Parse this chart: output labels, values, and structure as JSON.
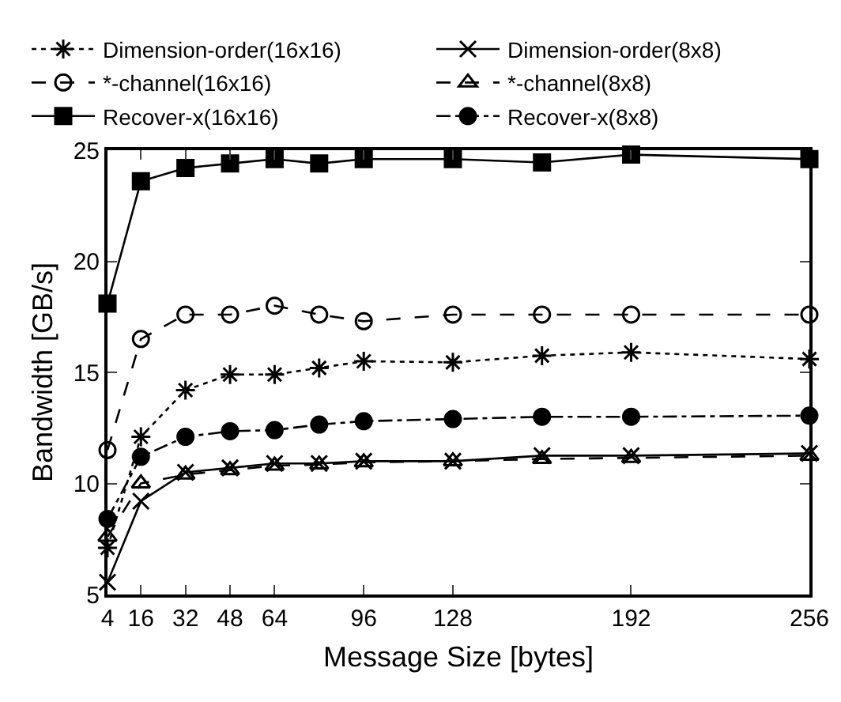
{
  "chart_data": {
    "type": "line",
    "xlabel": "Message Size [bytes]",
    "ylabel": "Bandwidth [GB/s]",
    "x": [
      4,
      16,
      32,
      48,
      64,
      80,
      96,
      128,
      160,
      192,
      256
    ],
    "xlim": [
      4,
      256
    ],
    "xticks": [
      4,
      16,
      32,
      48,
      64,
      96,
      128,
      192,
      256
    ],
    "ylim": [
      5,
      25
    ],
    "yticks": [
      5,
      10,
      15,
      20,
      25
    ],
    "grid": false,
    "legend": "top",
    "series": [
      {
        "name": "Dimension-order(16x16)",
        "color": "#000000",
        "marker": "cross",
        "line_style": "dotted",
        "values": [
          7.1,
          12.1,
          14.2,
          14.9,
          14.9,
          15.2,
          15.5,
          15.45,
          15.75,
          15.9,
          15.6
        ]
      },
      {
        "name": "Dimension-order(8x8)",
        "color": "#000000",
        "marker": "cross",
        "line_style": "solid",
        "values": [
          5.55,
          9.2,
          10.5,
          10.7,
          10.9,
          10.9,
          11.0,
          11.0,
          11.25,
          11.25,
          11.35
        ]
      },
      {
        "name": "*-channel(16x16)",
        "color": "#000000",
        "marker": "circle",
        "line_style": "dashed",
        "values": [
          11.5,
          16.5,
          17.6,
          17.6,
          18.0,
          17.6,
          17.3,
          17.6,
          17.6,
          17.6,
          17.6
        ]
      },
      {
        "name": "*-channel(8x8)",
        "color": "#000000",
        "marker": "triangle",
        "line_style": "dashed",
        "values": [
          7.6,
          10.0,
          10.4,
          10.6,
          10.8,
          10.85,
          10.95,
          11.0,
          11.1,
          11.15,
          11.25
        ]
      },
      {
        "name": "Recover-x(16x16)",
        "color": "#000000",
        "marker": "square",
        "line_style": "solid",
        "values": [
          18.1,
          23.6,
          24.2,
          24.4,
          24.6,
          24.4,
          24.6,
          24.6,
          24.45,
          24.8,
          24.6
        ]
      },
      {
        "name": "Recover-x(8x8)",
        "color": "#000000",
        "marker": "circle",
        "line_style": "dashdot",
        "values": [
          8.4,
          11.2,
          12.1,
          12.35,
          12.4,
          12.65,
          12.8,
          12.9,
          13.0,
          13.0,
          13.05
        ]
      }
    ]
  }
}
